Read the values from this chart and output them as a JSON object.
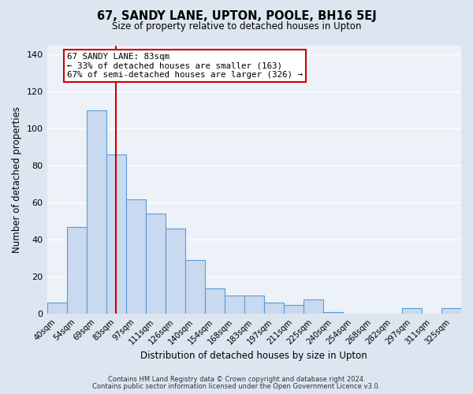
{
  "title": "67, SANDY LANE, UPTON, POOLE, BH16 5EJ",
  "subtitle": "Size of property relative to detached houses in Upton",
  "xlabel": "Distribution of detached houses by size in Upton",
  "ylabel": "Number of detached properties",
  "bar_labels": [
    "40sqm",
    "54sqm",
    "69sqm",
    "83sqm",
    "97sqm",
    "111sqm",
    "126sqm",
    "140sqm",
    "154sqm",
    "168sqm",
    "183sqm",
    "197sqm",
    "211sqm",
    "225sqm",
    "240sqm",
    "254sqm",
    "268sqm",
    "282sqm",
    "297sqm",
    "311sqm",
    "325sqm"
  ],
  "bar_values": [
    6,
    47,
    110,
    86,
    62,
    54,
    46,
    29,
    14,
    10,
    10,
    6,
    5,
    8,
    1,
    0,
    0,
    0,
    3,
    0,
    3
  ],
  "bar_color": "#c9d9f0",
  "bar_edge_color": "#5b9bd5",
  "vline_x_index": 3,
  "vline_color": "#cc0000",
  "annotation_title": "67 SANDY LANE: 83sqm",
  "annotation_line1": "← 33% of detached houses are smaller (163)",
  "annotation_line2": "67% of semi-detached houses are larger (326) →",
  "annotation_box_color": "#cc0000",
  "ylim": [
    0,
    145
  ],
  "yticks": [
    0,
    20,
    40,
    60,
    80,
    100,
    120,
    140
  ],
  "footer1": "Contains HM Land Registry data © Crown copyright and database right 2024.",
  "footer2": "Contains public sector information licensed under the Open Government Licence v3.0.",
  "bg_color": "#dde6f0",
  "plot_bg_color": "#edf2f8"
}
